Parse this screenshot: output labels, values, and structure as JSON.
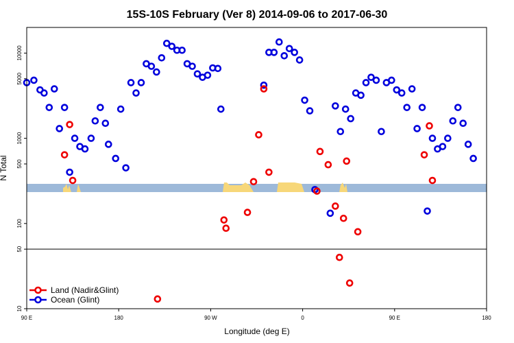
{
  "chart_data": {
    "type": "scatter",
    "title": "15S-10S February (Ver 8)   2014-09-06 to 2017-06-30",
    "xlabel": "Longitude (deg E)",
    "ylabel": "N Total",
    "y_scale": "log",
    "ylim": [
      10,
      20000
    ],
    "x_tick_labels": [
      "90 E",
      "180",
      "90 W",
      "0",
      "90 E",
      "180"
    ],
    "y_tick_labels": [
      "10",
      "50",
      "100",
      "500",
      "1000",
      "5000",
      "10000"
    ],
    "x_ticks_deg": [
      90,
      180,
      270,
      360,
      450,
      540
    ],
    "y_ticks": [
      10,
      50,
      100,
      500,
      1000,
      5000,
      10000
    ],
    "xlim_deg": [
      90,
      540
    ],
    "reference_line": 50,
    "colors": {
      "land": "#ee0000",
      "ocean": "#0000dd",
      "band": "#9db9d9",
      "land_fill": "#f7d779"
    },
    "legend": {
      "position": "bottom-left",
      "items": [
        {
          "label": "Land (Nadir&Glint)",
          "color": "#ee0000"
        },
        {
          "label": "Ocean (Glint)",
          "color": "#0000dd"
        }
      ]
    },
    "series": [
      {
        "name": "Ocean (Glint)",
        "color": "#0000dd",
        "points": [
          [
            90,
            4500
          ],
          [
            97,
            4800
          ],
          [
            103,
            3700
          ],
          [
            107,
            3400
          ],
          [
            112,
            2300
          ],
          [
            117,
            3800
          ],
          [
            122,
            1300
          ],
          [
            127,
            2300
          ],
          [
            132,
            400
          ],
          [
            137,
            1000
          ],
          [
            142,
            800
          ],
          [
            147,
            750
          ],
          [
            153,
            1000
          ],
          [
            157,
            1600
          ],
          [
            162,
            2300
          ],
          [
            167,
            1500
          ],
          [
            170,
            850
          ],
          [
            177,
            580
          ],
          [
            182,
            2200
          ],
          [
            187,
            450
          ],
          [
            192,
            4500
          ],
          [
            197,
            3400
          ],
          [
            202,
            4500
          ],
          [
            207,
            7500
          ],
          [
            212,
            7000
          ],
          [
            217,
            6000
          ],
          [
            222,
            8800
          ],
          [
            227,
            13000
          ],
          [
            232,
            12000
          ],
          [
            237,
            10800
          ],
          [
            242,
            10800
          ],
          [
            247,
            7500
          ],
          [
            252,
            7000
          ],
          [
            257,
            5700
          ],
          [
            262,
            5200
          ],
          [
            267,
            5500
          ],
          [
            272,
            6700
          ],
          [
            277,
            6600
          ],
          [
            280,
            2200
          ],
          [
            322,
            4200
          ],
          [
            327,
            10200
          ],
          [
            332,
            10200
          ],
          [
            337,
            13500
          ],
          [
            342,
            9300
          ],
          [
            347,
            11300
          ],
          [
            352,
            10200
          ],
          [
            357,
            8300
          ],
          [
            362,
            2800
          ],
          [
            367,
            2100
          ],
          [
            372,
            250
          ],
          [
            387,
            132
          ],
          [
            392,
            2400
          ],
          [
            397,
            1200
          ],
          [
            402,
            2200
          ],
          [
            407,
            1700
          ],
          [
            412,
            3400
          ],
          [
            417,
            3200
          ],
          [
            422,
            4500
          ],
          [
            427,
            5200
          ],
          [
            432,
            4800
          ],
          [
            437,
            1200
          ],
          [
            442,
            4500
          ],
          [
            447,
            4800
          ],
          [
            452,
            3700
          ],
          [
            457,
            3400
          ],
          [
            462,
            2300
          ],
          [
            467,
            3800
          ],
          [
            472,
            1300
          ],
          [
            477,
            2300
          ],
          [
            482,
            140
          ],
          [
            487,
            1000
          ],
          [
            492,
            750
          ],
          [
            497,
            800
          ],
          [
            502,
            1000
          ],
          [
            507,
            1600
          ],
          [
            512,
            2300
          ],
          [
            517,
            1500
          ],
          [
            522,
            850
          ],
          [
            527,
            580
          ]
        ]
      },
      {
        "name": "Land (Nadir&Glint)",
        "color": "#ee0000",
        "points": [
          [
            127,
            640
          ],
          [
            132,
            1450
          ],
          [
            135,
            320
          ],
          [
            218,
            13
          ],
          [
            283,
            110
          ],
          [
            285,
            88
          ],
          [
            306,
            135
          ],
          [
            312,
            310
          ],
          [
            317,
            1100
          ],
          [
            322,
            3800
          ],
          [
            327,
            400
          ],
          [
            374,
            240
          ],
          [
            377,
            700
          ],
          [
            385,
            490
          ],
          [
            392,
            160
          ],
          [
            396,
            40
          ],
          [
            400,
            115
          ],
          [
            403,
            540
          ],
          [
            406,
            20
          ],
          [
            414,
            80
          ],
          [
            479,
            640
          ],
          [
            484,
            1400
          ],
          [
            487,
            320
          ]
        ]
      }
    ]
  }
}
